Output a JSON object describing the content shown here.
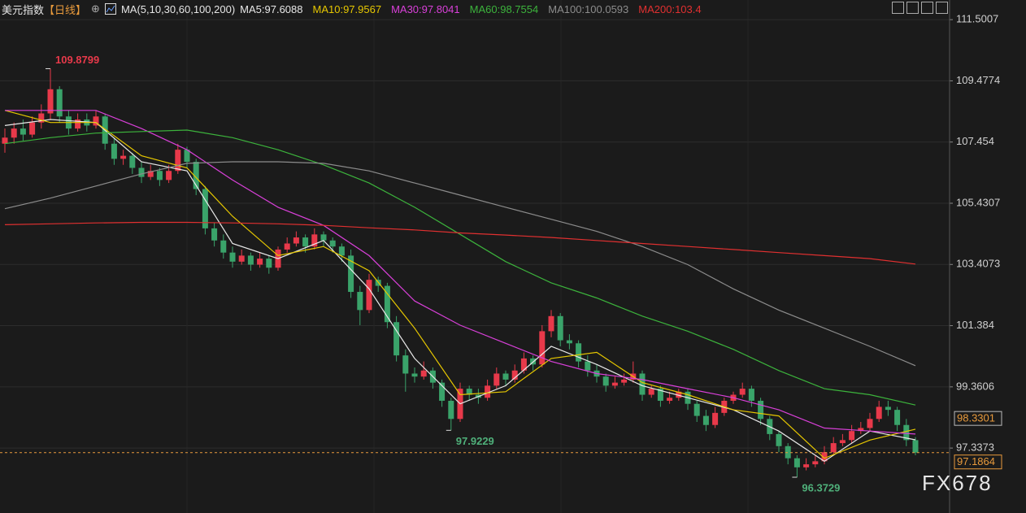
{
  "chart_data": {
    "type": "candlestick",
    "title": "美元指数",
    "period": "【日线】",
    "indicator": "MA(5,10,30,60,100,200)",
    "watermark": "FX678",
    "up_color": "#e8394a",
    "down_color": "#3aa36a",
    "ylim": [
      95.19,
      112.15
    ],
    "yticks": [
      111.5007,
      109.4774,
      107.454,
      105.4307,
      103.4073,
      101.384,
      99.3606,
      97.3373
    ],
    "last_price": 97.1864,
    "tag_price": 98.3301,
    "annotations": [
      {
        "x": 5,
        "y": 109.8799,
        "color": "#e8394a"
      },
      {
        "x": 49,
        "y": 97.9229,
        "color": "#4fb07a"
      },
      {
        "x": 87,
        "y": 96.3729,
        "color": "#4fb07a"
      }
    ],
    "candles": [
      [
        107.4,
        107.9,
        107.1,
        107.6
      ],
      [
        107.6,
        108.1,
        107.4,
        107.9
      ],
      [
        107.9,
        108.2,
        107.5,
        107.7
      ],
      [
        107.7,
        108.3,
        107.6,
        108.1
      ],
      [
        108.1,
        108.7,
        107.9,
        108.4
      ],
      [
        108.4,
        109.8799,
        108.2,
        109.2
      ],
      [
        109.2,
        109.3,
        108.1,
        108.3
      ],
      [
        108.3,
        108.5,
        107.7,
        107.9
      ],
      [
        107.9,
        108.4,
        107.8,
        108.2
      ],
      [
        108.2,
        108.4,
        107.8,
        108.0
      ],
      [
        108.0,
        108.5,
        107.9,
        108.3
      ],
      [
        108.3,
        108.4,
        107.2,
        107.4
      ],
      [
        107.4,
        107.6,
        106.7,
        106.9
      ],
      [
        106.9,
        107.2,
        106.7,
        107.0
      ],
      [
        107.0,
        107.1,
        106.4,
        106.6
      ],
      [
        106.6,
        106.8,
        106.1,
        106.3
      ],
      [
        106.3,
        106.7,
        106.2,
        106.5
      ],
      [
        106.5,
        106.6,
        106.0,
        106.2
      ],
      [
        106.2,
        106.7,
        106.1,
        106.5
      ],
      [
        106.5,
        107.4,
        106.4,
        107.2
      ],
      [
        107.2,
        107.3,
        106.6,
        106.8
      ],
      [
        106.8,
        106.9,
        105.7,
        105.9
      ],
      [
        105.9,
        106.0,
        104.4,
        104.6
      ],
      [
        104.6,
        104.8,
        104.0,
        104.2
      ],
      [
        104.2,
        104.4,
        103.6,
        103.8
      ],
      [
        103.8,
        104.0,
        103.3,
        103.5
      ],
      [
        103.5,
        103.9,
        103.4,
        103.7
      ],
      [
        103.7,
        103.8,
        103.2,
        103.4
      ],
      [
        103.4,
        103.8,
        103.3,
        103.6
      ],
      [
        103.6,
        103.7,
        103.1,
        103.3
      ],
      [
        103.3,
        104.0,
        103.2,
        103.9
      ],
      [
        103.9,
        104.3,
        103.8,
        104.1
      ],
      [
        104.1,
        104.5,
        104.0,
        104.3
      ],
      [
        104.3,
        104.4,
        103.8,
        104.0
      ],
      [
        104.0,
        104.6,
        103.9,
        104.4
      ],
      [
        104.4,
        104.5,
        104.0,
        104.2
      ],
      [
        104.2,
        104.3,
        103.8,
        104.0
      ],
      [
        104.0,
        104.1,
        103.5,
        103.7
      ],
      [
        103.7,
        103.9,
        102.3,
        102.5
      ],
      [
        102.5,
        102.7,
        101.4,
        101.9
      ],
      [
        101.9,
        103.1,
        101.8,
        102.9
      ],
      [
        102.9,
        103.0,
        102.5,
        102.7
      ],
      [
        102.7,
        102.8,
        101.3,
        101.5
      ],
      [
        101.5,
        101.7,
        100.2,
        100.4
      ],
      [
        100.4,
        100.6,
        99.2,
        99.8
      ],
      [
        99.8,
        100.0,
        99.5,
        99.7
      ],
      [
        99.7,
        100.2,
        99.6,
        99.9
      ],
      [
        99.9,
        100.0,
        99.3,
        99.5
      ],
      [
        99.5,
        99.6,
        98.7,
        98.9
      ],
      [
        98.9,
        99.0,
        97.9229,
        98.3
      ],
      [
        98.3,
        99.5,
        98.2,
        99.3
      ],
      [
        99.3,
        99.4,
        98.9,
        99.1
      ],
      [
        99.1,
        99.3,
        98.8,
        99.0
      ],
      [
        99.0,
        99.6,
        98.9,
        99.4
      ],
      [
        99.4,
        100.0,
        99.3,
        99.8
      ],
      [
        99.8,
        99.9,
        99.4,
        99.6
      ],
      [
        99.6,
        100.1,
        99.5,
        99.9
      ],
      [
        99.9,
        100.5,
        99.8,
        100.3
      ],
      [
        100.3,
        100.4,
        99.9,
        100.1
      ],
      [
        100.1,
        101.4,
        100.0,
        101.2
      ],
      [
        101.2,
        101.9,
        101.0,
        101.7
      ],
      [
        101.7,
        101.8,
        100.7,
        100.9
      ],
      [
        100.9,
        101.1,
        100.6,
        100.8
      ],
      [
        100.8,
        100.9,
        100.0,
        100.2
      ],
      [
        100.2,
        100.4,
        99.7,
        99.9
      ],
      [
        99.9,
        100.1,
        99.5,
        99.7
      ],
      [
        99.7,
        99.8,
        99.2,
        99.4
      ],
      [
        99.4,
        99.7,
        99.3,
        99.5
      ],
      [
        99.5,
        99.8,
        99.4,
        99.6
      ],
      [
        99.6,
        100.2,
        99.5,
        99.8
      ],
      [
        99.8,
        99.9,
        98.9,
        99.1
      ],
      [
        99.1,
        99.4,
        99.0,
        99.3
      ],
      [
        99.3,
        99.4,
        98.7,
        98.9
      ],
      [
        98.9,
        99.2,
        98.8,
        99.0
      ],
      [
        99.0,
        99.3,
        98.9,
        99.2
      ],
      [
        99.2,
        99.3,
        98.6,
        98.8
      ],
      [
        98.8,
        98.9,
        98.2,
        98.4
      ],
      [
        98.4,
        98.6,
        97.9,
        98.1
      ],
      [
        98.1,
        98.7,
        98.0,
        98.5
      ],
      [
        98.5,
        99.0,
        98.4,
        98.9
      ],
      [
        98.9,
        99.2,
        98.8,
        99.1
      ],
      [
        99.1,
        99.5,
        99.0,
        99.3
      ],
      [
        99.3,
        99.4,
        98.7,
        98.9
      ],
      [
        98.9,
        99.0,
        98.1,
        98.3
      ],
      [
        98.3,
        98.4,
        97.6,
        97.8
      ],
      [
        97.8,
        97.9,
        97.2,
        97.4
      ],
      [
        97.4,
        97.5,
        96.8,
        97.0
      ],
      [
        97.0,
        97.1,
        96.3729,
        96.7
      ],
      [
        96.7,
        97.0,
        96.6,
        96.8
      ],
      [
        96.8,
        97.1,
        96.7,
        96.9
      ],
      [
        96.9,
        97.4,
        96.8,
        97.2
      ],
      [
        97.2,
        97.7,
        97.1,
        97.5
      ],
      [
        97.5,
        97.8,
        97.4,
        97.6
      ],
      [
        97.6,
        98.1,
        97.5,
        97.9
      ],
      [
        97.9,
        98.2,
        97.8,
        98.0
      ],
      [
        98.0,
        98.5,
        97.9,
        98.3
      ],
      [
        98.3,
        98.9,
        98.2,
        98.7
      ],
      [
        98.7,
        98.9,
        98.4,
        98.6
      ],
      [
        98.6,
        98.7,
        97.9,
        98.1
      ],
      [
        98.1,
        98.3,
        97.4,
        97.6
      ],
      [
        97.6,
        97.7,
        97.1,
        97.1864
      ]
    ],
    "ma_x": [
      0,
      5,
      10,
      15,
      20,
      25,
      30,
      35,
      40,
      45,
      50,
      55,
      60,
      65,
      70,
      75,
      80,
      85,
      90,
      95,
      100
    ],
    "series": [
      {
        "name": "MA5:97.6088",
        "color": "#e8e8e8",
        "values": [
          108.0,
          108.2,
          108.1,
          106.8,
          106.5,
          104.1,
          103.6,
          104.2,
          102.6,
          100.3,
          98.8,
          99.4,
          100.7,
          100.1,
          99.4,
          99.0,
          98.6,
          97.9,
          96.9,
          97.9,
          97.61
        ]
      },
      {
        "name": "MA10:97.9567",
        "color": "#e6c700",
        "values": [
          108.5,
          108.1,
          108.1,
          107.0,
          106.6,
          105.0,
          103.7,
          104.0,
          103.2,
          101.3,
          99.1,
          99.2,
          100.3,
          100.5,
          99.5,
          99.1,
          98.6,
          98.4,
          97.0,
          97.6,
          97.96
        ]
      },
      {
        "name": "MA30:97.8041",
        "color": "#d940d9",
        "values": [
          108.5,
          108.5,
          108.5,
          107.9,
          107.2,
          106.2,
          105.3,
          104.7,
          103.7,
          102.2,
          101.4,
          100.8,
          100.2,
          99.8,
          99.6,
          99.3,
          99.0,
          98.6,
          98.0,
          97.9,
          97.8
        ]
      },
      {
        "name": "MA60:98.7554",
        "color": "#3cb33c",
        "values": [
          107.4,
          107.6,
          107.75,
          107.8,
          107.85,
          107.6,
          107.2,
          106.7,
          106.1,
          105.3,
          104.4,
          103.5,
          102.8,
          102.3,
          101.7,
          101.2,
          100.6,
          99.9,
          99.3,
          99.1,
          98.76
        ]
      },
      {
        "name": "MA100:100.0593",
        "color": "#8c8c8c",
        "values": [
          105.25,
          105.6,
          106.0,
          106.4,
          106.75,
          106.8,
          106.8,
          106.75,
          106.5,
          106.1,
          105.7,
          105.3,
          104.9,
          104.5,
          104.0,
          103.4,
          102.6,
          101.9,
          101.3,
          100.7,
          100.06
        ]
      },
      {
        "name": "MA200:103.4",
        "color": "#e03030",
        "values": [
          104.72,
          104.75,
          104.78,
          104.8,
          104.8,
          104.78,
          104.75,
          104.7,
          104.62,
          104.55,
          104.45,
          104.38,
          104.3,
          104.2,
          104.1,
          104.0,
          103.9,
          103.8,
          103.7,
          103.6,
          103.42
        ]
      }
    ]
  }
}
